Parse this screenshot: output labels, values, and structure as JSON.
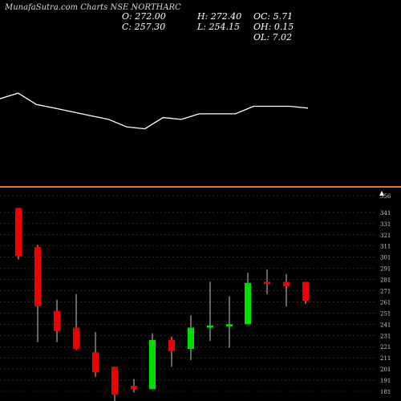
{
  "header": {
    "site_label": "MunafaSutra.com",
    "chart_label": "Charts NSE NORTHARC",
    "open": "O: 272.00",
    "close": "C: 257.30",
    "high": "H: 272.40",
    "low": "L: 254.15",
    "oc": "OC: 5.71",
    "oh": "OH: 0.15",
    "ol": "OL: 7.02"
  },
  "colors": {
    "background": "#000000",
    "bull": "#00dd00",
    "bear": "#ee0000",
    "line": "#ffffff",
    "divider": "#e8741e",
    "grid": "#444444",
    "tick_text": "#cccccc"
  },
  "chart_data": [
    {
      "type": "line",
      "title": "",
      "values": [
        328,
        331,
        325,
        323,
        321,
        319,
        317,
        313,
        312,
        318,
        317,
        320,
        320,
        320,
        324,
        324,
        324,
        323
      ],
      "ylim": [
        308,
        340
      ]
    },
    {
      "type": "candlestick",
      "ylim": [
        181,
        356
      ],
      "y_ticks": [
        "356",
        "341",
        "331",
        "321",
        "311",
        "301",
        "291",
        "281",
        "271",
        "261",
        "251",
        "241",
        "231",
        "221",
        "211",
        "201",
        "191",
        "181"
      ],
      "candles": [
        {
          "open": 345,
          "close": 302,
          "high": 345,
          "low": 299
        },
        {
          "open": 310,
          "close": 257,
          "high": 312,
          "low": 225
        },
        {
          "open": 253,
          "close": 235,
          "high": 263,
          "low": 225
        },
        {
          "open": 238,
          "close": 219,
          "high": 268,
          "low": 218
        },
        {
          "open": 216,
          "close": 198,
          "high": 234,
          "low": 194
        },
        {
          "open": 203,
          "close": 178,
          "high": 203,
          "low": 170
        },
        {
          "open": 186,
          "close": 183,
          "high": 192,
          "low": 180
        },
        {
          "open": 183,
          "close": 227,
          "high": 233,
          "low": 183
        },
        {
          "open": 227,
          "close": 217,
          "high": 230,
          "low": 203
        },
        {
          "open": 219,
          "close": 238,
          "high": 249,
          "low": 209
        },
        {
          "open": 238,
          "close": 240,
          "high": 279,
          "low": 226
        },
        {
          "open": 239,
          "close": 241,
          "high": 266,
          "low": 220
        },
        {
          "open": 241,
          "close": 278,
          "high": 287,
          "low": 241
        },
        {
          "open": 279,
          "close": 277,
          "high": 290,
          "low": 268
        },
        {
          "open": 279,
          "close": 275,
          "high": 286,
          "low": 257
        },
        {
          "open": 279,
          "close": 262,
          "high": 279,
          "low": 259
        }
      ]
    }
  ]
}
